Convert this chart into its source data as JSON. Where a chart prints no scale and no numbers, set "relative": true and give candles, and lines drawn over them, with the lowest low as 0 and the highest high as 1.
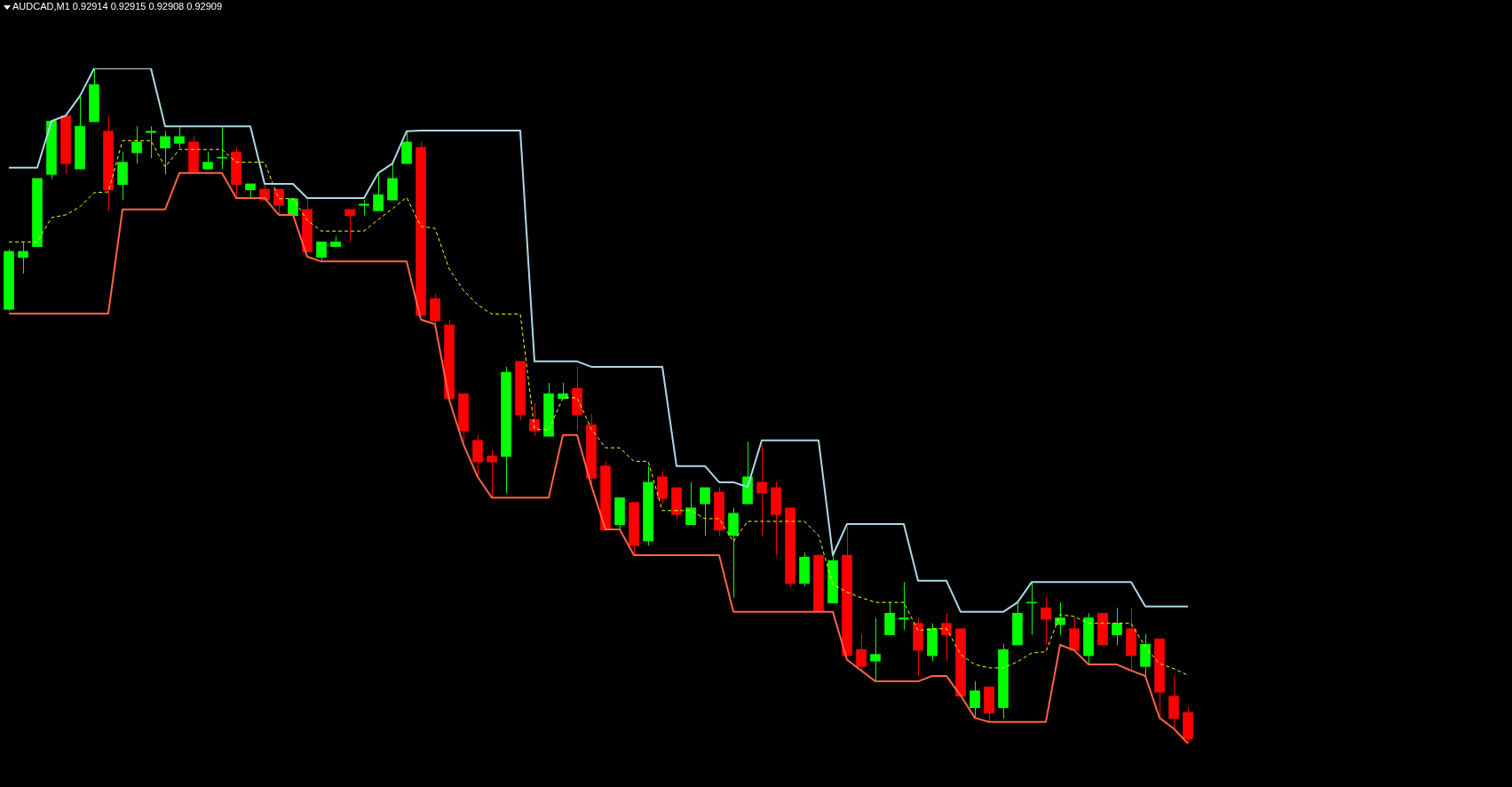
{
  "chart_data": {
    "type": "candlestick",
    "title": "AUDCAD,M1 0.92914 0.92915 0.92908 0.92909",
    "relative": true,
    "legend": false,
    "marker": "none",
    "categories": [
      null,
      null,
      null,
      null,
      null,
      null,
      null,
      null,
      null,
      null,
      null,
      null,
      null,
      null,
      null,
      null,
      null,
      null,
      null,
      null,
      null,
      null,
      null,
      null,
      null,
      null,
      null,
      null,
      null,
      null,
      null,
      null,
      null,
      null,
      null,
      null,
      null,
      null,
      null,
      null,
      null,
      null,
      null,
      null,
      null,
      null,
      null,
      null,
      null,
      null,
      null,
      null,
      null,
      null,
      null,
      null,
      null,
      null,
      null,
      null,
      null,
      null,
      null,
      null,
      null,
      null,
      null,
      null,
      null,
      null,
      null,
      null,
      null,
      null,
      null,
      null,
      null,
      null,
      null,
      null,
      null,
      null,
      null,
      null
    ],
    "ohlc": [
      [
        0.643,
        0.732,
        0.641,
        0.729
      ],
      [
        0.72,
        0.743,
        0.696,
        0.729
      ],
      [
        0.736,
        0.837,
        0.736,
        0.837
      ],
      [
        0.843,
        0.922,
        0.836,
        0.922
      ],
      [
        0.93,
        0.93,
        0.843,
        0.859
      ],
      [
        0.851,
        0.959,
        0.851,
        0.914
      ],
      [
        0.921,
        1.0,
        0.921,
        0.976
      ],
      [
        0.907,
        0.93,
        0.789,
        0.82
      ],
      [
        0.828,
        0.876,
        0.805,
        0.861
      ],
      [
        0.875,
        0.914,
        0.859,
        0.891
      ],
      [
        0.905,
        0.914,
        0.867,
        0.907
      ],
      [
        0.882,
        0.907,
        0.843,
        0.899
      ],
      [
        0.889,
        0.914,
        0.882,
        0.899
      ],
      [
        0.891,
        0.899,
        0.846,
        0.846
      ],
      [
        0.851,
        0.876,
        0.851,
        0.861
      ],
      [
        0.867,
        0.914,
        0.851,
        0.868
      ],
      [
        0.876,
        0.883,
        0.808,
        0.828
      ],
      [
        0.82,
        0.829,
        0.808,
        0.829
      ],
      [
        0.821,
        0.829,
        0.805,
        0.805
      ],
      [
        0.821,
        0.821,
        0.783,
        0.797
      ],
      [
        0.782,
        0.807,
        0.782,
        0.807
      ],
      [
        0.791,
        0.807,
        0.728,
        0.728
      ],
      [
        0.72,
        0.743,
        0.713,
        0.743
      ],
      [
        0.736,
        0.751,
        0.736,
        0.743
      ],
      [
        0.791,
        0.791,
        0.743,
        0.782
      ],
      [
        0.797,
        0.805,
        0.782,
        0.799
      ],
      [
        0.789,
        0.845,
        0.789,
        0.813
      ],
      [
        0.805,
        0.861,
        0.805,
        0.837
      ],
      [
        0.859,
        0.907,
        0.859,
        0.891
      ],
      [
        0.883,
        0.891,
        0.634,
        0.634
      ],
      [
        0.659,
        0.666,
        0.618,
        0.626
      ],
      [
        0.62,
        0.628,
        0.511,
        0.511
      ],
      [
        0.518,
        0.518,
        0.447,
        0.463
      ],
      [
        0.449,
        0.457,
        0.395,
        0.417
      ],
      [
        0.426,
        0.434,
        0.364,
        0.417
      ],
      [
        0.425,
        0.558,
        0.371,
        0.55
      ],
      [
        0.566,
        0.566,
        0.479,
        0.487
      ],
      [
        0.48,
        0.504,
        0.455,
        0.463
      ],
      [
        0.455,
        0.534,
        0.455,
        0.518
      ],
      [
        0.511,
        0.534,
        0.511,
        0.518
      ],
      [
        0.526,
        0.558,
        0.463,
        0.487
      ],
      [
        0.472,
        0.488,
        0.382,
        0.393
      ],
      [
        0.411,
        0.418,
        0.316,
        0.316
      ],
      [
        0.324,
        0.364,
        0.317,
        0.364
      ],
      [
        0.357,
        0.357,
        0.28,
        0.293
      ],
      [
        0.3,
        0.411,
        0.293,
        0.387
      ],
      [
        0.395,
        0.403,
        0.355,
        0.363
      ],
      [
        0.379,
        0.379,
        0.332,
        0.339
      ],
      [
        0.324,
        0.387,
        0.324,
        0.349
      ],
      [
        0.355,
        0.379,
        0.308,
        0.379
      ],
      [
        0.372,
        0.379,
        0.308,
        0.316
      ],
      [
        0.308,
        0.349,
        0.216,
        0.341
      ],
      [
        0.355,
        0.447,
        0.355,
        0.395
      ],
      [
        0.387,
        0.442,
        0.308,
        0.371
      ],
      [
        0.379,
        0.387,
        0.279,
        0.339
      ],
      [
        0.349,
        0.349,
        0.233,
        0.237
      ],
      [
        0.237,
        0.283,
        0.233,
        0.276
      ],
      [
        0.279,
        0.279,
        0.195,
        0.195
      ],
      [
        0.208,
        0.279,
        0.208,
        0.271
      ],
      [
        0.279,
        0.321,
        0.13,
        0.13
      ],
      [
        0.139,
        0.162,
        0.108,
        0.114
      ],
      [
        0.122,
        0.186,
        0.093,
        0.132
      ],
      [
        0.161,
        0.209,
        0.161,
        0.193
      ],
      [
        0.184,
        0.239,
        0.168,
        0.186
      ],
      [
        0.178,
        0.186,
        0.099,
        0.138
      ],
      [
        0.13,
        0.178,
        0.122,
        0.17
      ],
      [
        0.178,
        0.193,
        0.122,
        0.161
      ],
      [
        0.17,
        0.17,
        0.07,
        0.07
      ],
      [
        0.053,
        0.092,
        0.038,
        0.078
      ],
      [
        0.084,
        0.084,
        0.032,
        0.045
      ],
      [
        0.053,
        0.147,
        0.037,
        0.139
      ],
      [
        0.146,
        0.209,
        0.146,
        0.193
      ],
      [
        0.208,
        0.239,
        0.161,
        0.209
      ],
      [
        0.201,
        0.217,
        0.146,
        0.184
      ],
      [
        0.176,
        0.209,
        0.161,
        0.186
      ],
      [
        0.17,
        0.186,
        0.138,
        0.138
      ],
      [
        0.13,
        0.193,
        0.117,
        0.186
      ],
      [
        0.193,
        0.193,
        0.146,
        0.146
      ],
      [
        0.161,
        0.201,
        0.146,
        0.178
      ],
      [
        0.17,
        0.201,
        0.108,
        0.13
      ],
      [
        0.114,
        0.162,
        0.1,
        0.147
      ],
      [
        0.155,
        0.155,
        0.037,
        0.076
      ],
      [
        0.07,
        0.1,
        0.022,
        0.037
      ],
      [
        0.046,
        0.054,
        0.0,
        0.007
      ]
    ],
    "colors": [
      "#00ff00",
      "#00ff00",
      "#00ff00",
      "#00ff00",
      "#ff0000",
      "#00ff00",
      "#00ff00",
      "#ff0000",
      "#00ff00",
      "#00ff00",
      "#00ff00",
      "#00ff00",
      "#00ff00",
      "#ff0000",
      "#00ff00",
      "#00ff00",
      "#ff0000",
      "#00ff00",
      "#ff0000",
      "#ff0000",
      "#00ff00",
      "#ff0000",
      "#00ff00",
      "#00ff00",
      "#ff0000",
      "#00ff00",
      "#00ff00",
      "#00ff00",
      "#00ff00",
      "#ff0000",
      "#ff0000",
      "#ff0000",
      "#ff0000",
      "#ff0000",
      "#ff0000",
      "#00ff00",
      "#ff0000",
      "#ff0000",
      "#00ff00",
      "#00ff00",
      "#ff0000",
      "#ff0000",
      "#ff0000",
      "#00ff00",
      "#ff0000",
      "#00ff00",
      "#ff0000",
      "#ff0000",
      "#00ff00",
      "#00ff00",
      "#ff0000",
      "#00ff00",
      "#00ff00",
      "#ff0000",
      "#ff0000",
      "#ff0000",
      "#00ff00",
      "#ff0000",
      "#00ff00",
      "#ff0000",
      "#ff0000",
      "#00ff00",
      "#00ff00",
      "#00ff00",
      "#ff0000",
      "#00ff00",
      "#ff0000",
      "#ff0000",
      "#00ff00",
      "#ff0000",
      "#00ff00",
      "#00ff00",
      "#00ff00",
      "#ff0000",
      "#00ff00",
      "#ff0000",
      "#00ff00",
      "#ff0000",
      "#00ff00",
      "#ff0000",
      "#00ff00",
      "#ff0000",
      "#ff0000",
      "#ff0000"
    ],
    "series": [
      {
        "type": "line",
        "color": "#add8e6",
        "line_style": "solid",
        "values": [
          0.853,
          0.853,
          0.853,
          0.922,
          0.93,
          0.959,
          1.0,
          1.0,
          1.0,
          1.0,
          1.0,
          0.914,
          0.914,
          0.914,
          0.914,
          0.914,
          0.914,
          0.914,
          0.829,
          0.829,
          0.829,
          0.808,
          0.808,
          0.808,
          0.808,
          0.808,
          0.845,
          0.859,
          0.907,
          0.908,
          0.908,
          0.908,
          0.908,
          0.908,
          0.908,
          0.908,
          0.908,
          0.566,
          0.566,
          0.566,
          0.566,
          0.558,
          0.558,
          0.558,
          0.558,
          0.558,
          0.558,
          0.411,
          0.411,
          0.411,
          0.387,
          0.387,
          0.38,
          0.449,
          0.449,
          0.449,
          0.449,
          0.449,
          0.279,
          0.325,
          0.325,
          0.325,
          0.325,
          0.325,
          0.241,
          0.241,
          0.241,
          0.195,
          0.195,
          0.195,
          0.195,
          0.209,
          0.239,
          0.239,
          0.239,
          0.239,
          0.239,
          0.239,
          0.239,
          0.239,
          0.203,
          0.203,
          0.203,
          0.203
        ]
      },
      {
        "type": "line",
        "color": "#ff6347",
        "line_style": "solid",
        "values": [
          0.637,
          0.637,
          0.637,
          0.637,
          0.637,
          0.637,
          0.637,
          0.637,
          0.791,
          0.791,
          0.791,
          0.791,
          0.845,
          0.845,
          0.845,
          0.845,
          0.808,
          0.808,
          0.808,
          0.783,
          0.783,
          0.721,
          0.714,
          0.714,
          0.714,
          0.714,
          0.714,
          0.714,
          0.714,
          0.628,
          0.621,
          0.509,
          0.443,
          0.395,
          0.364,
          0.364,
          0.364,
          0.364,
          0.364,
          0.457,
          0.457,
          0.382,
          0.317,
          0.317,
          0.279,
          0.279,
          0.279,
          0.279,
          0.279,
          0.279,
          0.279,
          0.195,
          0.195,
          0.195,
          0.195,
          0.195,
          0.195,
          0.195,
          0.195,
          0.124,
          0.108,
          0.092,
          0.092,
          0.092,
          0.092,
          0.1,
          0.1,
          0.071,
          0.038,
          0.032,
          0.032,
          0.032,
          0.032,
          0.032,
          0.146,
          0.138,
          0.117,
          0.117,
          0.117,
          0.108,
          0.1,
          0.038,
          0.022,
          0.0
        ]
      },
      {
        "type": "line",
        "color": "#ffff00",
        "line_style": "dashed",
        "values": [
          0.743,
          0.743,
          0.743,
          0.779,
          0.783,
          0.795,
          0.816,
          0.817,
          0.893,
          0.893,
          0.893,
          0.854,
          0.88,
          0.88,
          0.88,
          0.88,
          0.861,
          0.861,
          0.861,
          0.807,
          0.807,
          0.775,
          0.759,
          0.759,
          0.759,
          0.759,
          0.776,
          0.792,
          0.809,
          0.766,
          0.763,
          0.703,
          0.671,
          0.65,
          0.636,
          0.636,
          0.636,
          0.466,
          0.464,
          0.512,
          0.512,
          0.466,
          0.438,
          0.438,
          0.418,
          0.418,
          0.345,
          0.345,
          0.345,
          0.333,
          0.333,
          0.299,
          0.329,
          0.329,
          0.329,
          0.329,
          0.329,
          0.308,
          0.236,
          0.224,
          0.216,
          0.209,
          0.209,
          0.209,
          0.167,
          0.17,
          0.17,
          0.132,
          0.117,
          0.112,
          0.112,
          0.121,
          0.134,
          0.136,
          0.191,
          0.188,
          0.178,
          0.178,
          0.178,
          0.178,
          0.143,
          0.118,
          0.111,
          0.101
        ]
      }
    ]
  }
}
